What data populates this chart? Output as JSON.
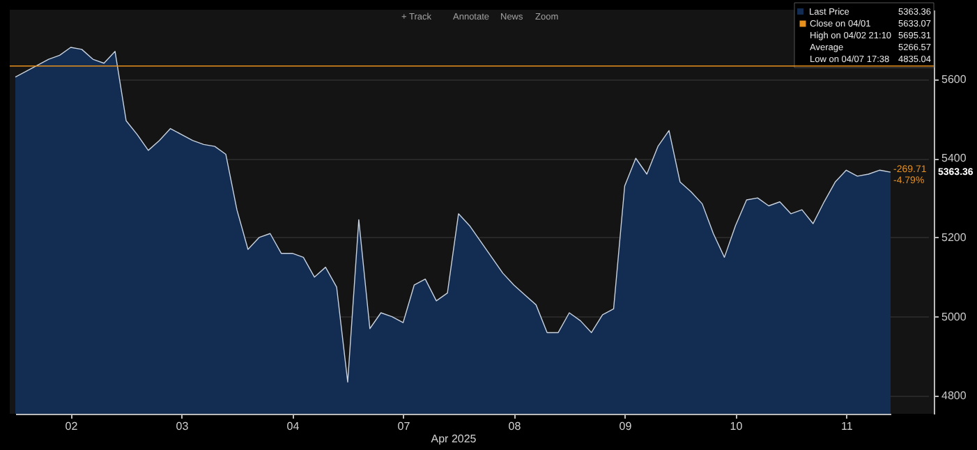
{
  "chart_data": {
    "type": "area",
    "xlabel": "Apr 2025",
    "legend": "top right",
    "grid": "y",
    "categories": [
      null,
      null,
      null,
      null,
      null,
      "02",
      null,
      null,
      null,
      null,
      null,
      null,
      null,
      null,
      null,
      "03",
      null,
      null,
      null,
      null,
      null,
      null,
      null,
      null,
      null,
      "04",
      null,
      null,
      null,
      null,
      null,
      null,
      null,
      null,
      null,
      "07",
      null,
      null,
      null,
      null,
      null,
      null,
      null,
      null,
      null,
      "08",
      null,
      null,
      null,
      null,
      null,
      null,
      null,
      null,
      null,
      "09",
      null,
      null,
      null,
      null,
      null,
      null,
      null,
      null,
      null,
      "10",
      null,
      null,
      null,
      null,
      null,
      null,
      null,
      null,
      null,
      "11",
      null,
      null,
      null,
      null
    ],
    "ylim": [
      4755,
      5775
    ],
    "yticks": [
      4800,
      5000,
      5200,
      5400,
      5600
    ],
    "series": [
      {
        "name": "Last Price",
        "color": "#132c52",
        "values": [
          5605,
          5620,
          5635,
          5650,
          5660,
          5680,
          5675,
          5650,
          5640,
          5670,
          5495,
          5460,
          5420,
          5445,
          5475,
          5460,
          5445,
          5435,
          5430,
          5410,
          5270,
          5170,
          5200,
          5210,
          5160,
          5160,
          5150,
          5100,
          5125,
          5075,
          4835,
          5245,
          4970,
          5010,
          5000,
          4985,
          5080,
          5095,
          5040,
          5060,
          5260,
          5230,
          5190,
          5150,
          5110,
          5080,
          5055,
          5030,
          4960,
          4960,
          5010,
          4990,
          4960,
          5005,
          5020,
          5330,
          5400,
          5360,
          5430,
          5470,
          5340,
          5315,
          5285,
          5210,
          5150,
          5230,
          5295,
          5300,
          5280,
          5290,
          5260,
          5270,
          5235,
          5290,
          5340,
          5370,
          5355,
          5360,
          5370,
          5365
        ]
      }
    ],
    "ref_lines": [
      {
        "axis": "y",
        "value": 5633.07,
        "label": "Close on 04/01",
        "color": "#e8901c"
      }
    ],
    "annotations": [
      "5363.36",
      "5633.07",
      "High on 04/02 21:10",
      "5695.31",
      "Average",
      "5266.57",
      "Low on 04/07 17:38",
      "4835.04",
      "-269.71",
      "-4.79%",
      "5363.36",
      "+ Track",
      "Annotate",
      "News",
      "Zoom"
    ]
  }
}
